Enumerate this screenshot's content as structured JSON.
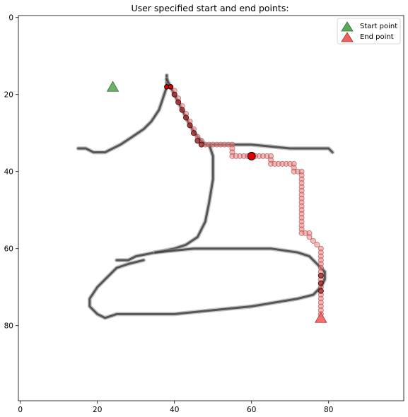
{
  "chart_data": {
    "type": "scatter",
    "title": "User specified start and end points:",
    "xlabel": "",
    "ylabel": "",
    "xlim": [
      -0.5,
      99.5
    ],
    "ylim": [
      99.5,
      -0.5
    ],
    "y_inverted": true,
    "grid": false,
    "legend_position": "top-right",
    "x_ticks": [
      0,
      20,
      40,
      60,
      80
    ],
    "y_ticks": [
      0,
      20,
      40,
      60,
      80
    ],
    "colors": {
      "start": "#5aa85a",
      "end": "#f06060",
      "path": "#f08080",
      "marker": "#e00000",
      "stroke": "#000000"
    },
    "series": [
      {
        "name": "Start point",
        "marker": "triangle",
        "points": [
          [
            24,
            18
          ]
        ]
      },
      {
        "name": "End point",
        "marker": "triangle",
        "points": [
          [
            78,
            78
          ]
        ]
      }
    ],
    "path_points": [
      [
        39,
        18
      ],
      [
        40,
        19
      ],
      [
        40,
        20
      ],
      [
        41,
        21
      ],
      [
        41,
        22
      ],
      [
        42,
        23
      ],
      [
        42,
        24
      ],
      [
        43,
        25
      ],
      [
        43,
        26
      ],
      [
        44,
        27
      ],
      [
        44,
        28
      ],
      [
        45,
        29
      ],
      [
        45,
        30
      ],
      [
        46,
        31
      ],
      [
        46,
        32
      ],
      [
        47,
        32
      ],
      [
        47,
        33
      ],
      [
        48,
        33
      ],
      [
        49,
        33
      ],
      [
        50,
        33
      ],
      [
        51,
        33
      ],
      [
        52,
        33
      ],
      [
        53,
        33
      ],
      [
        54,
        33
      ],
      [
        55,
        33
      ],
      [
        55,
        34
      ],
      [
        55,
        35
      ],
      [
        55,
        36
      ],
      [
        56,
        36
      ],
      [
        57,
        36
      ],
      [
        58,
        36
      ],
      [
        59,
        36
      ],
      [
        61,
        36
      ],
      [
        62,
        36
      ],
      [
        63,
        36
      ],
      [
        64,
        36
      ],
      [
        65,
        36
      ],
      [
        65,
        37
      ],
      [
        65,
        38
      ],
      [
        66,
        38
      ],
      [
        67,
        38
      ],
      [
        68,
        38
      ],
      [
        69,
        38
      ],
      [
        70,
        38
      ],
      [
        71,
        38
      ],
      [
        71,
        39
      ],
      [
        71,
        40
      ],
      [
        72,
        40
      ],
      [
        73,
        40
      ],
      [
        73,
        41
      ],
      [
        73,
        42
      ],
      [
        73,
        43
      ],
      [
        73,
        44
      ],
      [
        73,
        45
      ],
      [
        73,
        46
      ],
      [
        73,
        47
      ],
      [
        73,
        48
      ],
      [
        73,
        49
      ],
      [
        73,
        50
      ],
      [
        73,
        51
      ],
      [
        73,
        52
      ],
      [
        73,
        53
      ],
      [
        73,
        54
      ],
      [
        73,
        55
      ],
      [
        73,
        56
      ],
      [
        74,
        56
      ],
      [
        75,
        56
      ],
      [
        75,
        57
      ],
      [
        76,
        58
      ],
      [
        77,
        59
      ],
      [
        78,
        60
      ],
      [
        78,
        61
      ],
      [
        78,
        62
      ],
      [
        78,
        63
      ],
      [
        78,
        64
      ],
      [
        78,
        65
      ],
      [
        78,
        66
      ],
      [
        78,
        67
      ],
      [
        78,
        68
      ],
      [
        78,
        69
      ],
      [
        78,
        70
      ],
      [
        78,
        71
      ],
      [
        78,
        72
      ],
      [
        78,
        73
      ],
      [
        78,
        74
      ],
      [
        78,
        75
      ],
      [
        78,
        76
      ],
      [
        78,
        77
      ]
    ],
    "dark_path_points": [
      [
        40,
        20
      ],
      [
        41,
        22
      ],
      [
        42,
        24
      ],
      [
        43,
        26
      ],
      [
        44,
        28
      ],
      [
        45,
        30
      ],
      [
        46,
        32
      ],
      [
        47,
        33
      ],
      [
        78,
        67
      ],
      [
        78,
        69
      ],
      [
        78,
        71
      ]
    ],
    "highlight_points": [
      [
        60,
        36
      ]
    ],
    "small_red_points": [
      [
        38,
        18
      ],
      [
        39,
        18
      ]
    ],
    "drawing_strokes": [
      [
        [
          38,
          15
        ],
        [
          38,
          18
        ],
        [
          37,
          21
        ],
        [
          36,
          24
        ],
        [
          34,
          27
        ],
        [
          32,
          29
        ],
        [
          29,
          31
        ],
        [
          26,
          33
        ],
        [
          24,
          34
        ],
        [
          22,
          35
        ],
        [
          19,
          35
        ],
        [
          17,
          34
        ],
        [
          15,
          34
        ]
      ],
      [
        [
          38,
          16
        ],
        [
          40,
          20
        ],
        [
          42,
          24
        ],
        [
          44,
          28
        ],
        [
          46,
          31
        ],
        [
          48,
          33
        ],
        [
          52,
          33
        ],
        [
          60,
          33
        ],
        [
          70,
          34
        ],
        [
          80,
          34
        ],
        [
          81,
          35
        ]
      ],
      [
        [
          49,
          33
        ],
        [
          50,
          36
        ],
        [
          50,
          42
        ],
        [
          49,
          48
        ],
        [
          48,
          53
        ],
        [
          46,
          57
        ],
        [
          43,
          59
        ],
        [
          40,
          60
        ],
        [
          35,
          61
        ],
        [
          30,
          62
        ],
        [
          28,
          63
        ],
        [
          25,
          63
        ]
      ],
      [
        [
          35,
          61
        ],
        [
          45,
          60
        ],
        [
          55,
          60
        ],
        [
          65,
          60
        ],
        [
          72,
          61
        ],
        [
          75,
          62
        ],
        [
          77,
          64
        ],
        [
          79,
          66
        ],
        [
          79,
          68
        ],
        [
          78,
          70
        ],
        [
          76,
          72
        ],
        [
          72,
          73
        ],
        [
          60,
          75
        ],
        [
          50,
          76
        ],
        [
          40,
          77
        ],
        [
          30,
          77
        ],
        [
          25,
          77
        ],
        [
          22,
          78
        ],
        [
          20,
          77
        ],
        [
          18,
          75
        ],
        [
          18,
          73
        ],
        [
          20,
          70
        ],
        [
          22,
          68
        ],
        [
          25,
          65
        ],
        [
          28,
          64
        ],
        [
          32,
          63
        ]
      ]
    ]
  }
}
